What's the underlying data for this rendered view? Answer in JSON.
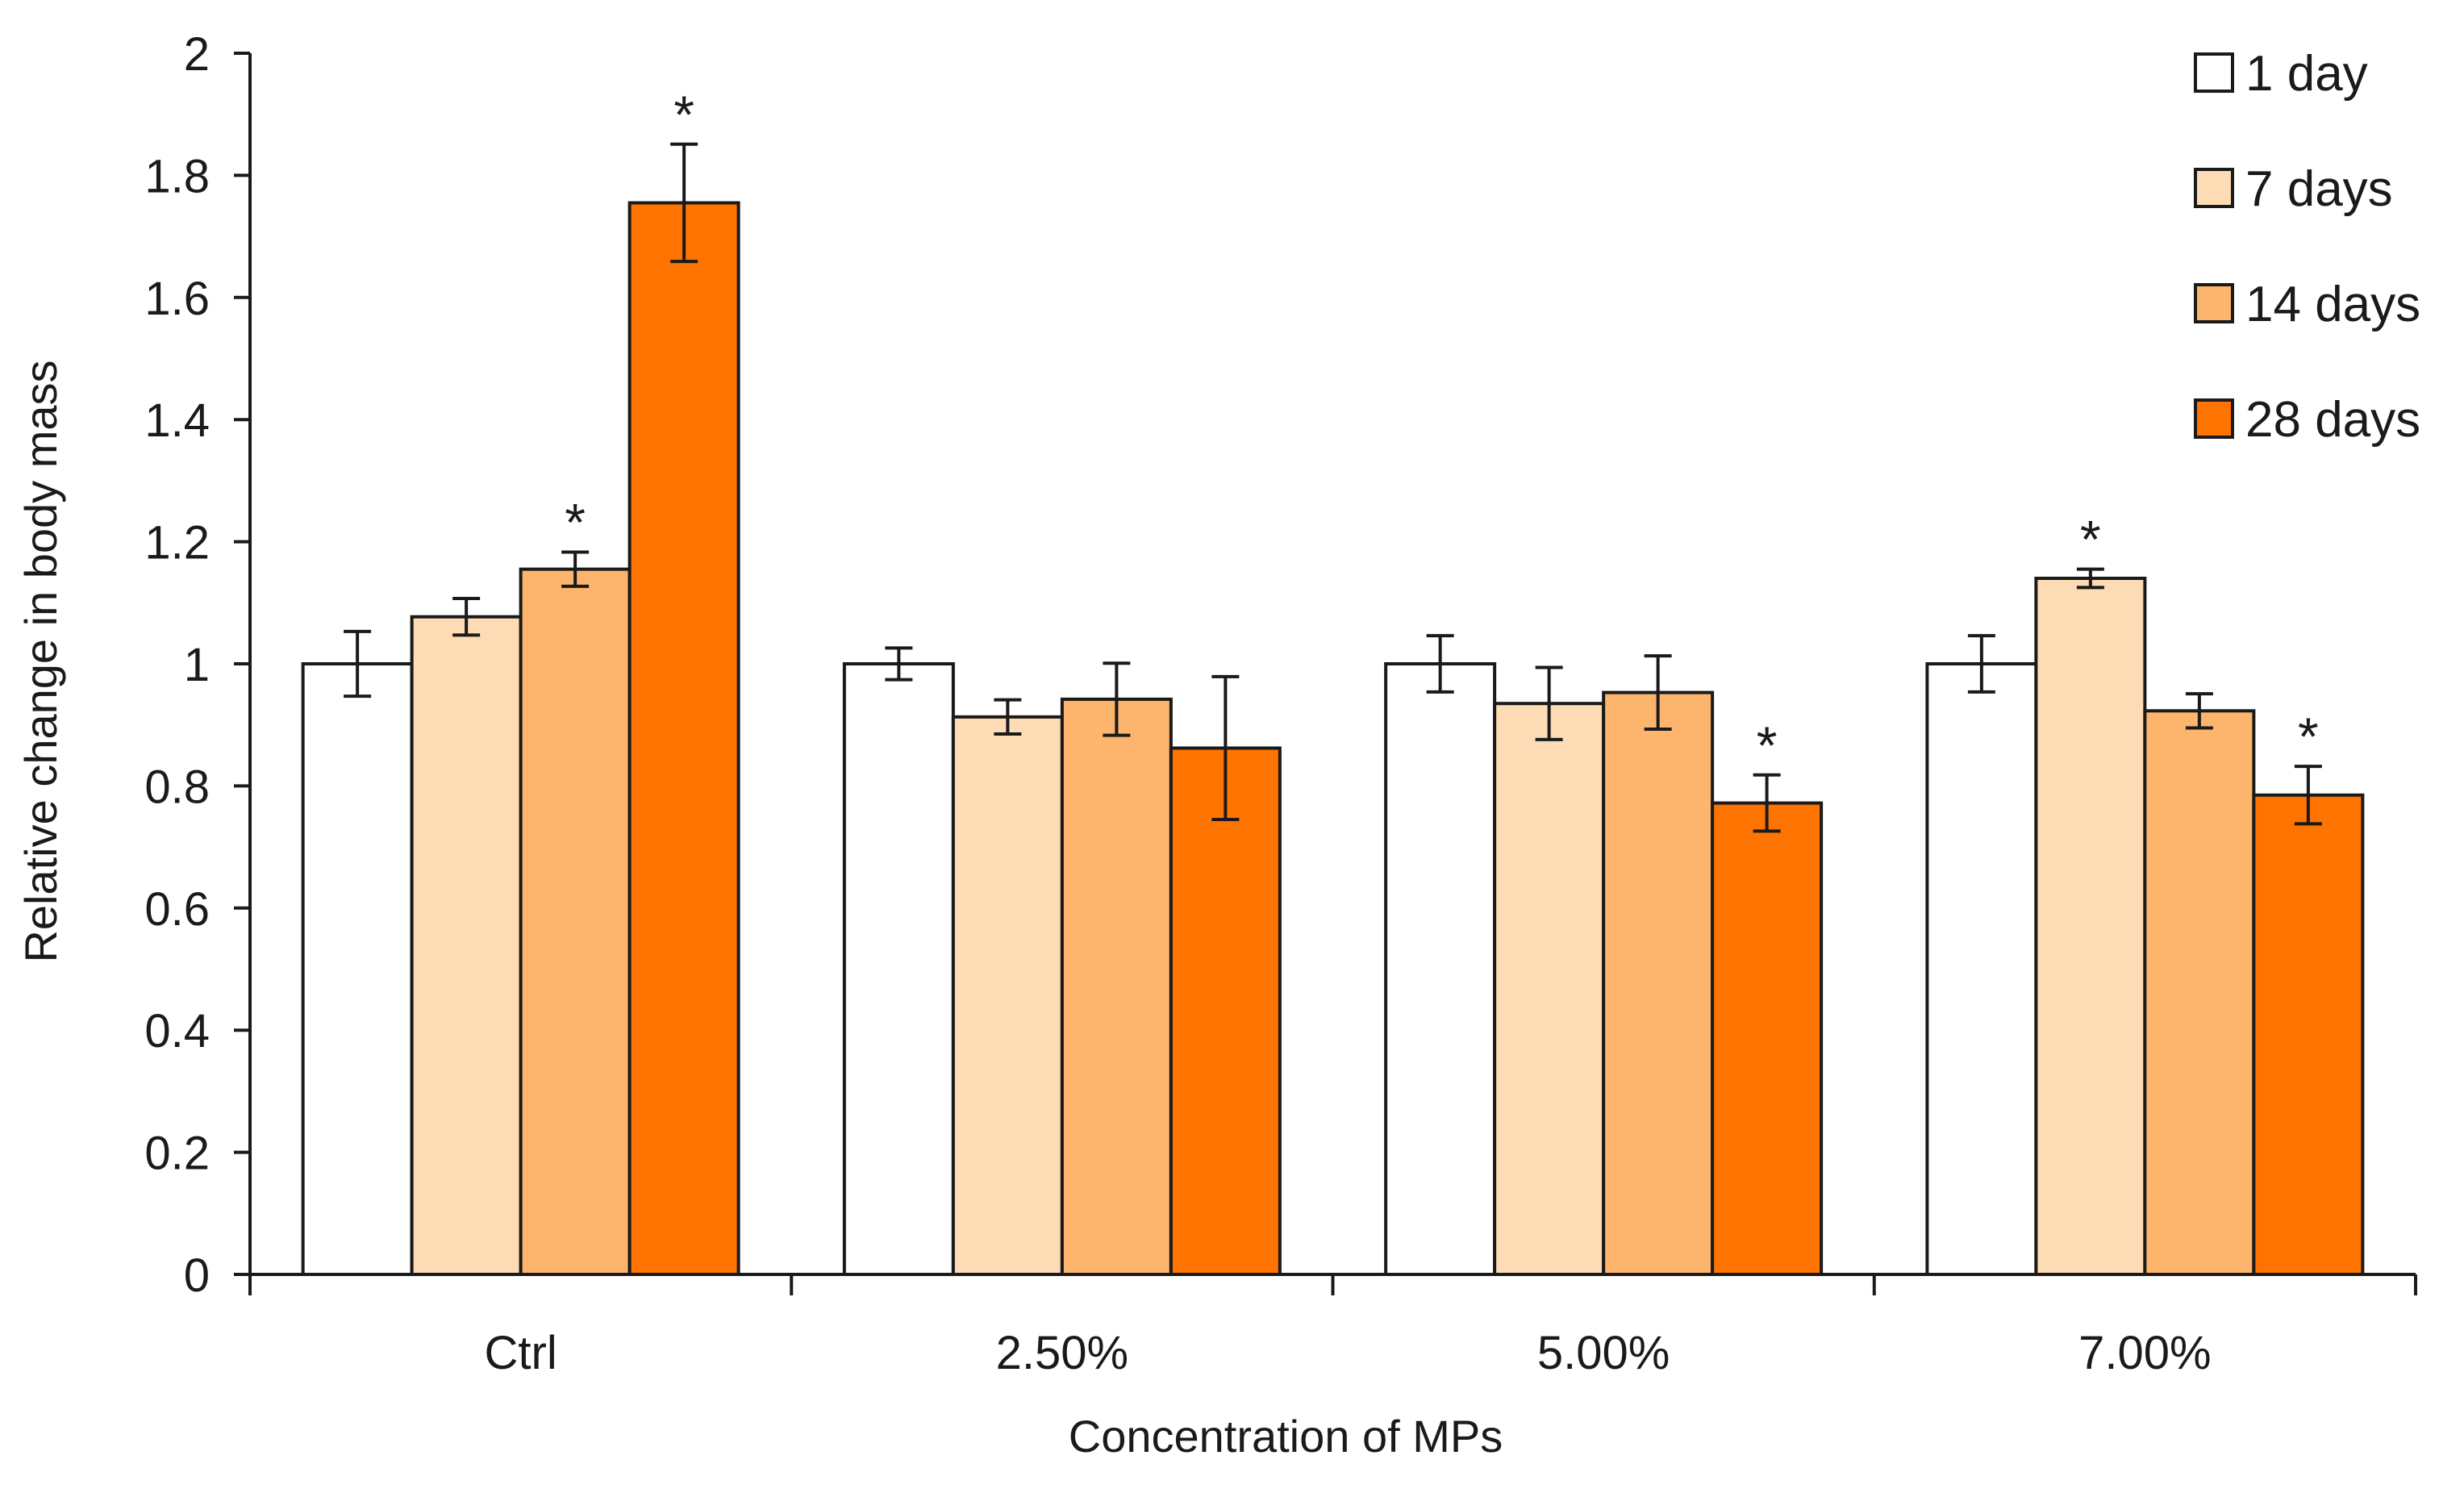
{
  "chart_data": {
    "type": "bar",
    "title": "",
    "xlabel": "Concentration of MPs",
    "ylabel": "Relative change in body mass",
    "ylim": [
      0,
      2
    ],
    "yticks": [
      0,
      0.2,
      0.4,
      0.6,
      0.8,
      1,
      1.2,
      1.4,
      1.6,
      1.8,
      2
    ],
    "ytick_labels": [
      "0",
      "0.2",
      "0.4",
      "0.6",
      "0.8",
      "1",
      "1.2",
      "1.4",
      "1.6",
      "1.8",
      "2"
    ],
    "categories": [
      "Ctrl",
      "2.50%",
      "5.00%",
      "7.00%"
    ],
    "significance_marker": "*",
    "legend_position": "top-right",
    "grid": false,
    "series": [
      {
        "name": "1 day",
        "color": "#ffffff",
        "values": [
          1.0,
          1.0,
          1.0,
          1.0
        ],
        "errors": [
          0.053,
          0.026,
          0.046,
          0.046
        ],
        "significant": [
          false,
          false,
          false,
          false
        ]
      },
      {
        "name": "7 days",
        "color": "#fddcb5",
        "values": [
          1.077,
          0.913,
          0.935,
          1.14
        ],
        "errors": [
          0.03,
          0.028,
          0.059,
          0.015
        ],
        "significant": [
          false,
          false,
          false,
          true
        ]
      },
      {
        "name": "14 days",
        "color": "#fdb46c",
        "values": [
          1.155,
          0.942,
          0.953,
          0.923
        ],
        "errors": [
          0.028,
          0.059,
          0.06,
          0.028
        ],
        "significant": [
          true,
          false,
          false,
          false
        ]
      },
      {
        "name": "28 days",
        "color": "#ff7300",
        "values": [
          1.755,
          0.862,
          0.772,
          0.785
        ],
        "errors": [
          0.096,
          0.117,
          0.046,
          0.047
        ],
        "significant": [
          true,
          false,
          true,
          true
        ]
      }
    ]
  }
}
